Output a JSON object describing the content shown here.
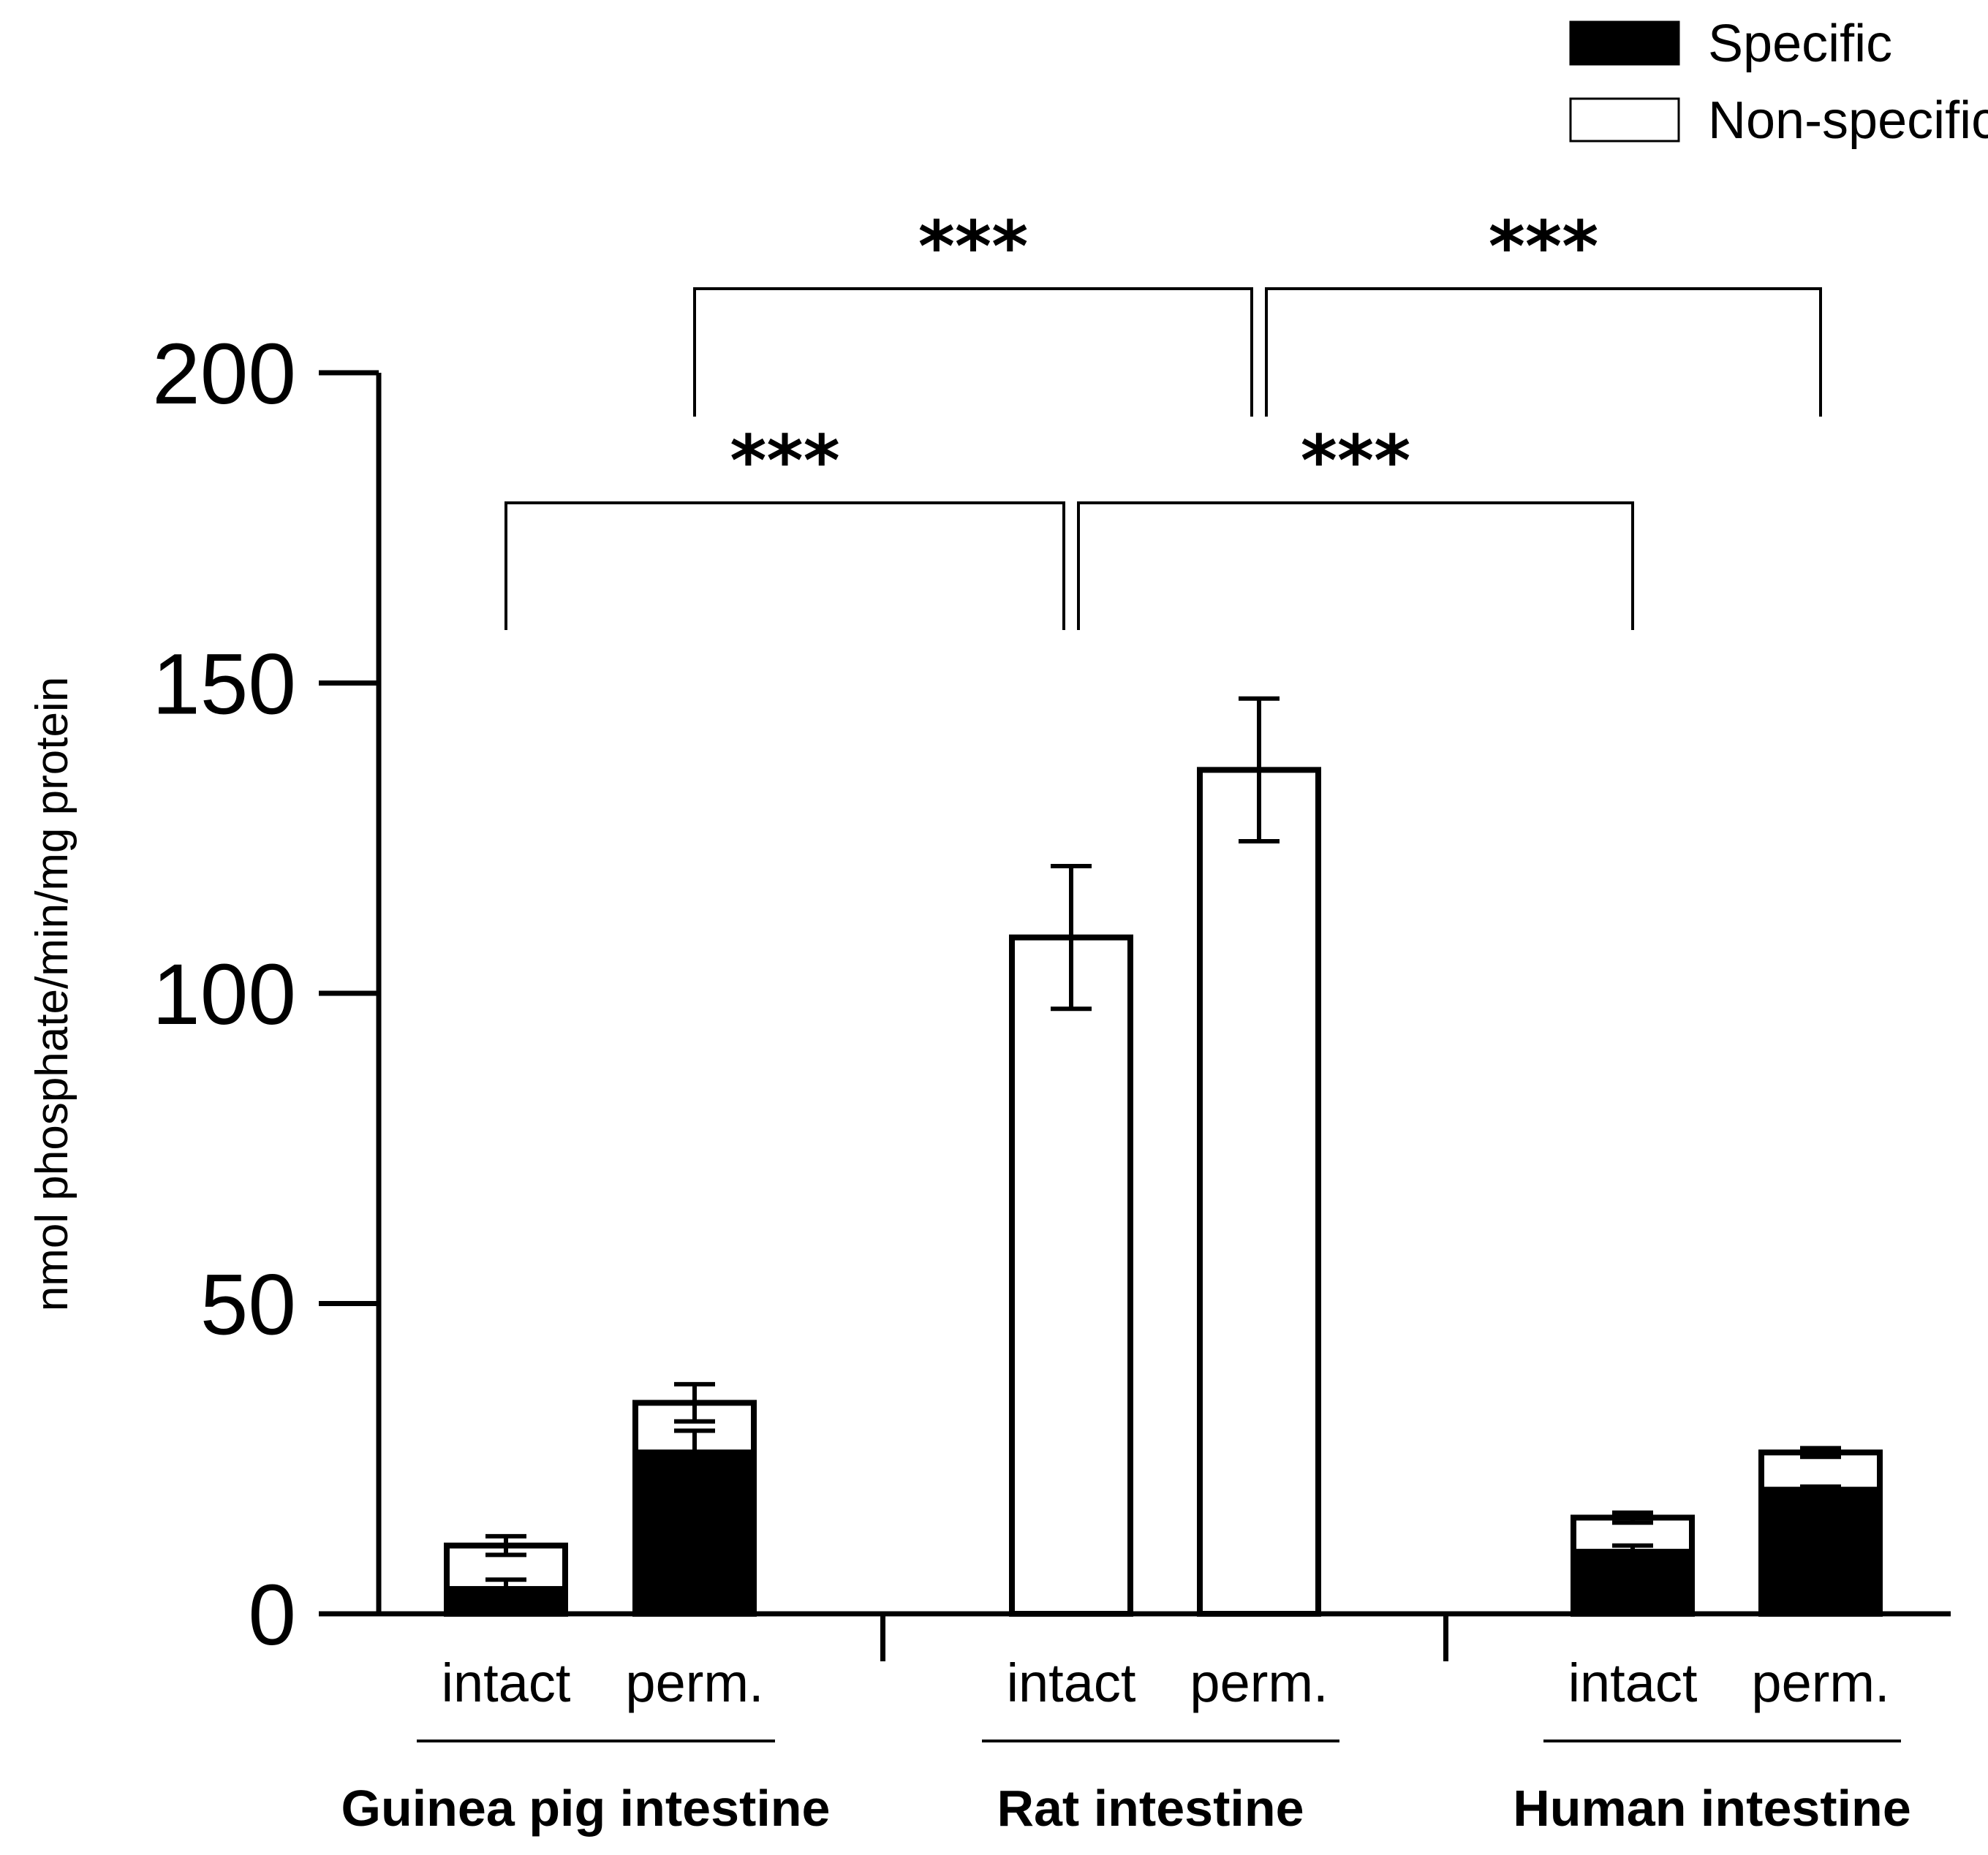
{
  "chart_data": {
    "type": "bar",
    "stacked": true,
    "ylabel": "nmol phosphate/min/mg protein",
    "ylim": [
      0,
      200
    ],
    "yticks": [
      "0",
      "50",
      "100",
      "150",
      "200"
    ],
    "grid": false,
    "legend_position": "top-right",
    "legend": [
      {
        "name": "Specific",
        "color": "#000000"
      },
      {
        "name": "Non-specific",
        "color": "#ffffff"
      }
    ],
    "groups": [
      {
        "name": "Guinea pig intestine",
        "categories": [
          "intact",
          "perm."
        ]
      },
      {
        "name": "Rat intestine",
        "categories": [
          "intact",
          "perm."
        ]
      },
      {
        "name": "Human intestine",
        "categories": [
          "intact",
          "perm."
        ]
      }
    ],
    "bars": [
      {
        "specific": 4,
        "total": 11,
        "specific_err": 1.5,
        "total_err": 1.5
      },
      {
        "specific": 26,
        "total": 34,
        "specific_err": 3.5,
        "total_err": 3
      },
      {
        "specific": 0,
        "total": 109,
        "specific_err": 0,
        "total_err": 11.5
      },
      {
        "specific": 0,
        "total": 136,
        "specific_err": 0,
        "total_err": 11.5
      },
      {
        "specific": 10,
        "total": 15.5,
        "specific_err": 1,
        "total_err": 0.8
      },
      {
        "specific": 20,
        "total": 26,
        "specific_err": 0.5,
        "total_err": 0.7
      }
    ],
    "significance": [
      {
        "from": 1,
        "to": 3,
        "label": "***"
      },
      {
        "from": 3,
        "to": 5,
        "label": "***"
      },
      {
        "from": 0,
        "to": 2,
        "label": "***"
      },
      {
        "from": 2,
        "to": 4,
        "label": "***"
      }
    ]
  }
}
